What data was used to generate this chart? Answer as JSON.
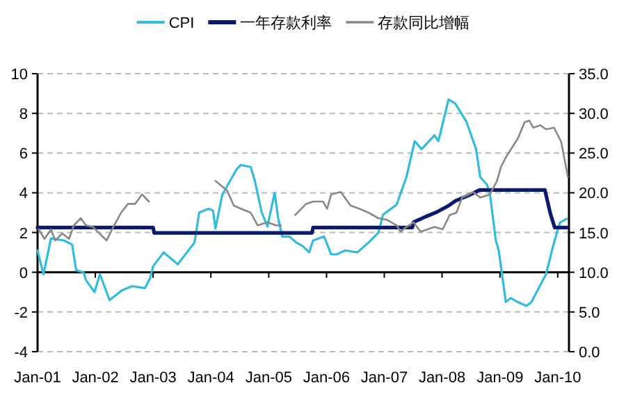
{
  "chart_data": {
    "type": "line",
    "xlim": [
      "2001-01-01",
      "2010-03-13"
    ],
    "xticks": [
      {
        "value": "2001-01",
        "label": "Jan-01"
      },
      {
        "value": "2002-01",
        "label": "Jan-02"
      },
      {
        "value": "2003-01",
        "label": "Jan-03"
      },
      {
        "value": "2004-01",
        "label": "Jan-04"
      },
      {
        "value": "2005-01",
        "label": "Jan-05"
      },
      {
        "value": "2006-01",
        "label": "Jan-06"
      },
      {
        "value": "2007-01",
        "label": "Jan-07"
      },
      {
        "value": "2008-01",
        "label": "Jan-08"
      },
      {
        "value": "2009-01",
        "label": "Jan-09"
      },
      {
        "value": "2010-01",
        "label": "Jan-10"
      }
    ],
    "ylim": [
      -4,
      10
    ],
    "yticks": [
      -4,
      -2,
      0,
      2,
      4,
      6,
      8,
      10
    ],
    "y2lim": [
      0,
      35
    ],
    "y2ticks": [
      {
        "value": 0,
        "label": "0.0"
      },
      {
        "value": 5,
        "label": "5.0"
      },
      {
        "value": 10,
        "label": "10.0"
      },
      {
        "value": 15,
        "label": "15.0"
      },
      {
        "value": 20,
        "label": "20.0"
      },
      {
        "value": 25,
        "label": "25.0"
      },
      {
        "value": 30,
        "label": "30.0"
      },
      {
        "value": 35,
        "label": "35.0"
      }
    ],
    "grid": "y",
    "legend": "top",
    "series": [
      {
        "name": "CPI",
        "color": "#33bbdd",
        "x": [
          "2001-01-01",
          "2001-02-07",
          "2001-03-27",
          "2001-06-17",
          "2001-08-07",
          "2001-09-02",
          "2001-10-19",
          "2001-11-03",
          "2001-12-27",
          "2002-01-30",
          "2002-04-01",
          "2002-06-20",
          "2002-08-21",
          "2002-11-11",
          "2002-12-13",
          "2003-01-01",
          "2003-03-09",
          "2003-06-06",
          "2003-09-20",
          "2003-10-19",
          "2003-12-17",
          "2004-01-15",
          "2004-01-30",
          "2004-03-13",
          "2004-06-13",
          "2004-07-08",
          "2004-09-09",
          "2004-10-05",
          "2004-11-18",
          "2004-12-24",
          "2005-02-07",
          "2005-03-02",
          "2005-03-27",
          "2005-05-11",
          "2005-06-24",
          "2005-08-07",
          "2005-09-13",
          "2005-10-08",
          "2005-12-17",
          "2006-01-30",
          "2006-03-06",
          "2006-04-30",
          "2006-07-15",
          "2006-09-24",
          "2006-11-25",
          "2006-12-24",
          "2007-03-20",
          "2007-05-21",
          "2007-07-12",
          "2007-08-25",
          "2007-11-14",
          "2007-12-09",
          "2008-02-11",
          "2008-03-24",
          "2008-06-02",
          "2008-08-03",
          "2008-08-29",
          "2008-10-12",
          "2008-10-30",
          "2008-12-06",
          "2008-12-24",
          "2009-02-07",
          "2009-03-09",
          "2009-04-23",
          "2009-06-17",
          "2009-07-19",
          "2009-10-19",
          "2009-12-02",
          "2009-12-27",
          "2010-01-15",
          "2010-02-28"
        ],
        "values": [
          1.1,
          -0.1,
          1.7,
          1.6,
          1.4,
          0.1,
          0.0,
          -0.4,
          -1.0,
          -0.1,
          -1.4,
          -0.9,
          -0.7,
          -0.8,
          -0.3,
          0.3,
          1.0,
          0.4,
          1.5,
          3.0,
          3.2,
          3.1,
          2.2,
          3.9,
          5.2,
          5.4,
          5.3,
          4.6,
          3.0,
          2.3,
          4.0,
          2.7,
          1.8,
          1.8,
          1.5,
          1.3,
          1.0,
          1.6,
          1.8,
          0.9,
          0.9,
          1.1,
          1.0,
          1.5,
          2.0,
          2.9,
          3.4,
          4.8,
          6.6,
          6.2,
          6.9,
          6.6,
          8.7,
          8.5,
          7.6,
          6.2,
          4.8,
          4.4,
          3.9,
          1.6,
          1.1,
          -1.5,
          -1.3,
          -1.5,
          -1.7,
          -1.5,
          -0.1,
          1.3,
          2.0,
          2.5,
          2.7
        ]
      },
      {
        "name": "一年存款利率",
        "color": "#0a1a6e",
        "x": [
          "2001-01-01",
          "2003-01-01",
          "2003-01-08",
          "2005-10-01",
          "2005-10-08",
          "2007-06-27",
          "2007-07-05",
          "2007-09-17",
          "2007-12-06",
          "2008-02-07",
          "2008-03-27",
          "2008-06-17",
          "2008-08-25",
          "2009-10-12",
          "2009-11-14",
          "2009-12-13",
          "2010-02-28"
        ],
        "values": [
          2.25,
          2.25,
          1.98,
          1.98,
          2.25,
          2.25,
          2.52,
          2.79,
          3.06,
          3.33,
          3.6,
          3.87,
          4.14,
          4.14,
          3.0,
          2.25,
          2.25
        ]
      },
      {
        "name": "存款同比增幅",
        "color": "#888888",
        "axis": "y2",
        "x": [
          "2001-01-08",
          "2001-02-14",
          "2001-03-27",
          "2001-04-23",
          "2001-06-06",
          "2001-07-19",
          "2001-08-18",
          "2001-10-01",
          "2001-11-03",
          "2001-12-17",
          "2002-03-13",
          "2002-04-30",
          "2002-06-13",
          "2002-07-26",
          "2002-09-09",
          "2002-10-23",
          "2002-12-06",
          "2003-04-19",
          "2004-01-30",
          "2004-04-12",
          "2004-05-25",
          "2004-07-08",
          "2004-09-09",
          "2004-10-23",
          "2004-12-24",
          "2005-02-14",
          "2005-03-20",
          "2005-04-19",
          "2005-06-17",
          "2005-08-25",
          "2005-10-08",
          "2005-12-09",
          "2006-01-05",
          "2006-01-30",
          "2006-04-01",
          "2006-06-02",
          "2006-07-26",
          "2006-09-24",
          "2006-11-25",
          "2007-01-19",
          "2007-03-20",
          "2007-04-15",
          "2007-05-21",
          "2007-07-05",
          "2007-08-18",
          "2007-10-01",
          "2007-11-14",
          "2008-01-05",
          "2008-02-18",
          "2008-04-01",
          "2008-05-07",
          "2008-06-20",
          "2008-07-15",
          "2008-08-29",
          "2008-10-30",
          "2008-12-13",
          "2009-01-08",
          "2009-02-14",
          "2009-04-23",
          "2009-06-06",
          "2009-07-05",
          "2009-07-30",
          "2009-09-13",
          "2009-10-19",
          "2009-12-09",
          "2010-01-23",
          "2010-03-06"
        ],
        "values": [
          15.4,
          14.2,
          15.4,
          14.0,
          14.9,
          14.2,
          15.9,
          16.8,
          15.9,
          15.7,
          14.0,
          15.9,
          17.5,
          18.6,
          18.6,
          19.8,
          18.9,
          null,
          21.5,
          20.3,
          18.4,
          18.0,
          17.5,
          15.9,
          16.3,
          15.9,
          15.9,
          null,
          17.2,
          18.6,
          18.9,
          18.9,
          18.0,
          19.8,
          20.1,
          18.4,
          18.0,
          17.5,
          16.8,
          16.6,
          15.9,
          15.1,
          15.7,
          16.3,
          15.1,
          15.4,
          15.7,
          15.4,
          17.2,
          17.5,
          19.4,
          19.8,
          20.1,
          19.4,
          19.8,
          21.5,
          23.3,
          24.7,
          26.8,
          28.9,
          29.1,
          28.2,
          28.5,
          28.0,
          28.2,
          26.4,
          22.0
        ]
      }
    ]
  }
}
